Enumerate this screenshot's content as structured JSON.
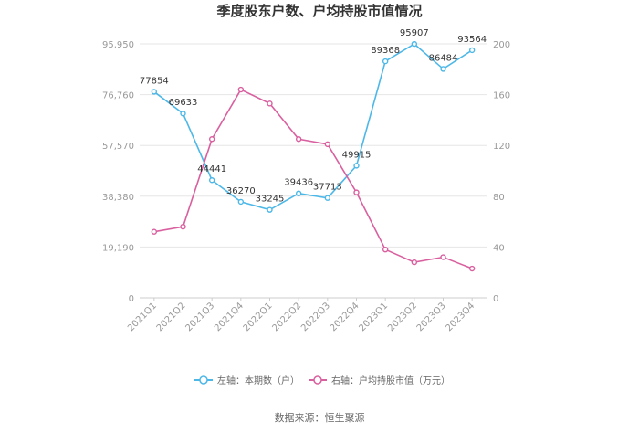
{
  "chart_data": {
    "type": "line",
    "title": "季度股东户数、户均持股市值情况",
    "categories": [
      "2021Q1",
      "2021Q2",
      "2021Q3",
      "2021Q4",
      "2022Q1",
      "2022Q2",
      "2022Q3",
      "2022Q4",
      "2023Q1",
      "2023Q2",
      "2023Q3",
      "2023Q4"
    ],
    "left_axis": {
      "ticks": [
        "0",
        "19,190",
        "38,380",
        "57,570",
        "76,760",
        "95,950"
      ],
      "max": 95950
    },
    "right_axis": {
      "ticks": [
        "0",
        "40",
        "80",
        "120",
        "160",
        "200"
      ],
      "max": 200
    },
    "series": [
      {
        "name": "左轴：本期数（户）",
        "axis": "left",
        "color": "#4db8e8",
        "values": [
          77854,
          69633,
          44441,
          36270,
          33245,
          39436,
          37713,
          49915,
          89368,
          95907,
          86484,
          93564
        ],
        "labels": [
          "77854",
          "69633",
          "44441",
          "36270",
          "33245",
          "39436",
          "37713",
          "49915",
          "89368",
          "95907",
          "86484",
          "93564"
        ]
      },
      {
        "name": "右轴：户均持股市值（万元）",
        "axis": "right",
        "color": "#d9609f",
        "values": [
          52,
          56,
          125,
          164,
          153,
          125,
          121,
          83,
          38,
          28,
          32,
          23
        ]
      }
    ],
    "grid": true,
    "legend_position": "bottom",
    "source": "数据来源：恒生聚源"
  }
}
